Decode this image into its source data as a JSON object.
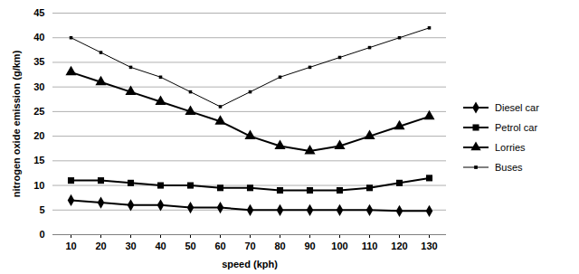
{
  "chart_data": {
    "type": "line",
    "x_label": "speed (kph)",
    "y_label": "nitrogen oxide emission (g/km)",
    "categories": [
      10,
      20,
      30,
      40,
      50,
      60,
      70,
      80,
      90,
      100,
      110,
      120,
      130
    ],
    "ylim": [
      0,
      45
    ],
    "yticks": [
      0,
      5,
      10,
      15,
      20,
      25,
      30,
      35,
      40,
      45
    ],
    "grid": true,
    "legend": "right",
    "series": [
      {
        "name": "Diesel car",
        "color": "#000000",
        "marker": "diamond",
        "line_style": "solid",
        "values": [
          7,
          6.5,
          6,
          6,
          5.5,
          5.5,
          5,
          5,
          5,
          5,
          5,
          4.8,
          4.8
        ]
      },
      {
        "name": "Petrol car",
        "color": "#000000",
        "marker": "square",
        "line_style": "solid",
        "values": [
          11,
          11,
          10.5,
          10,
          10,
          9.5,
          9.5,
          9,
          9,
          9,
          9.5,
          10.5,
          11.5
        ]
      },
      {
        "name": "Lorries",
        "color": "#000000",
        "marker": "triangle",
        "line_style": "solid",
        "values": [
          33,
          31,
          29,
          27,
          25,
          23,
          20,
          18,
          17,
          18,
          20,
          22,
          24
        ]
      },
      {
        "name": "Buses",
        "color": "#000000",
        "marker": "small_square",
        "line_style": "solid",
        "values": [
          40,
          37,
          34,
          32,
          29,
          26,
          29,
          32,
          34,
          36,
          38,
          40,
          42
        ]
      }
    ]
  }
}
